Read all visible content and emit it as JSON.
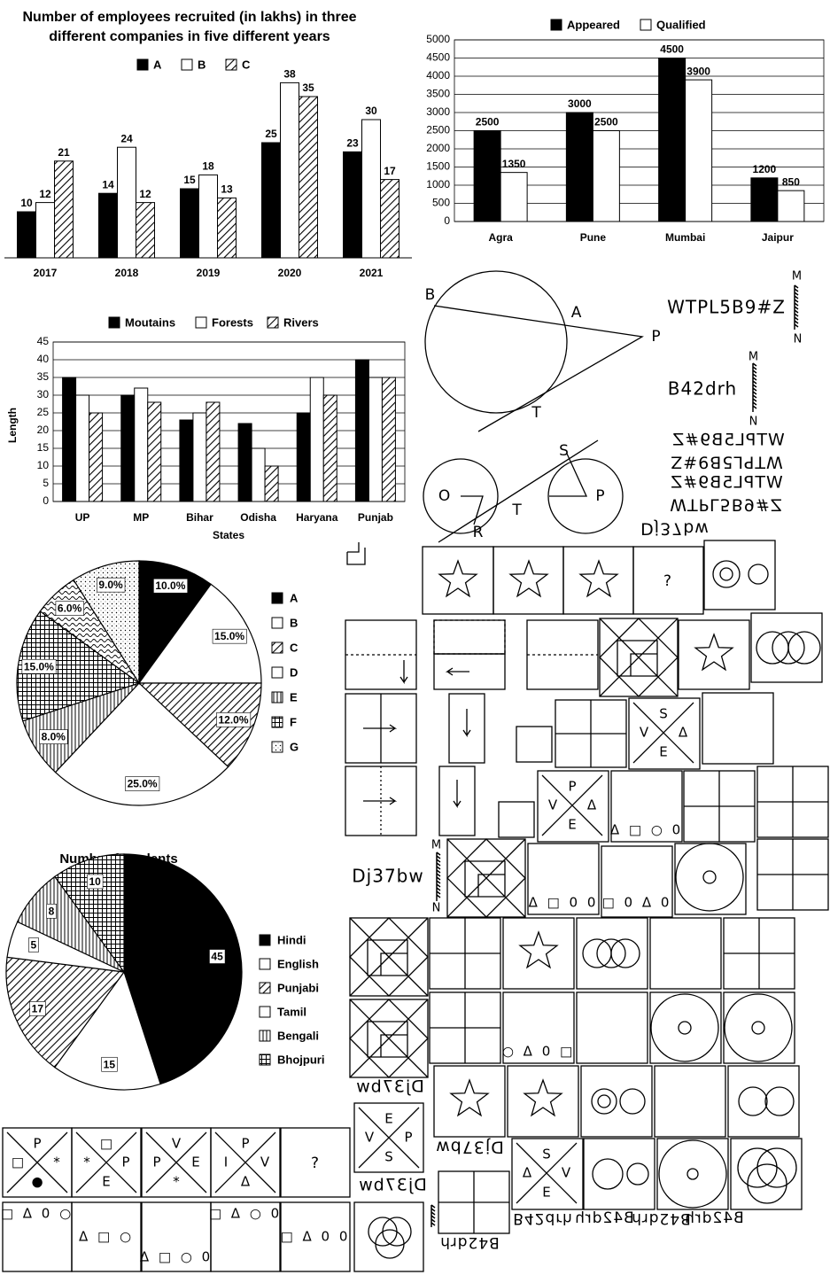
{
  "chart_data": [
    {
      "type": "bar",
      "title": "Number of employees recruited (in lakhs) in three different companies in five different years",
      "categories": [
        "2017",
        "2018",
        "2019",
        "2020",
        "2021"
      ],
      "series": [
        {
          "name": "A",
          "color": "#000000",
          "values": [
            10,
            14,
            15,
            25,
            23
          ]
        },
        {
          "name": "B",
          "color": "#ffffff",
          "values": [
            12,
            24,
            18,
            38,
            30
          ]
        },
        {
          "name": "C",
          "color": "#ffffff",
          "pattern": "diagonal-hatch",
          "values": [
            21,
            12,
            13,
            35,
            17
          ]
        }
      ],
      "ylim": [
        0,
        40
      ],
      "data_labels": true
    },
    {
      "type": "bar",
      "categories": [
        "Agra",
        "Pune",
        "Mumbai",
        "Jaipur"
      ],
      "series": [
        {
          "name": "Appeared",
          "color": "#000000",
          "values": [
            2500,
            3000,
            4500,
            1200
          ]
        },
        {
          "name": "Qualified",
          "color": "#ffffff",
          "values": [
            1350,
            2500,
            3900,
            850
          ]
        }
      ],
      "ylim": [
        0,
        5000
      ],
      "yticks": [
        0,
        500,
        1000,
        1500,
        2000,
        2500,
        3000,
        3500,
        4000,
        4500,
        5000
      ],
      "grid": true,
      "data_labels": true
    },
    {
      "type": "bar",
      "categories": [
        "UP",
        "MP",
        "Bihar",
        "Odisha",
        "Haryana",
        "Punjab"
      ],
      "series": [
        {
          "name": "Moutains",
          "color": "#000000",
          "values": [
            35,
            30,
            23,
            22,
            25,
            40
          ]
        },
        {
          "name": "Forests",
          "color": "#ffffff",
          "values": [
            30,
            32,
            25,
            15,
            35,
            35
          ]
        },
        {
          "name": "Rivers",
          "color": "#ffffff",
          "pattern": "diagonal-hatch",
          "values": [
            25,
            28,
            28,
            10,
            30,
            35
          ]
        }
      ],
      "xlabel": "States",
      "ylabel": "Length",
      "ylim": [
        0,
        45
      ],
      "yticks": [
        0,
        5,
        10,
        15,
        20,
        25,
        30,
        35,
        40,
        45
      ],
      "grid": true,
      "data_labels": false
    },
    {
      "type": "pie",
      "categories": [
        "A",
        "B",
        "C",
        "D",
        "E",
        "F",
        null,
        "G"
      ],
      "values": [
        10,
        15,
        12,
        25,
        8,
        15,
        6,
        9
      ],
      "value_labels": [
        "10.0%",
        "15.0%",
        "12.0%",
        "25.0%",
        "8.0%",
        "15.0%",
        "6.0%",
        "9.0%"
      ],
      "colors": [
        "#000000",
        "#ffffff",
        "#ffffff",
        "#ffffff",
        "#ffffff",
        "#ffffff",
        "#ffffff",
        "#ffffff"
      ],
      "patterns": [
        null,
        null,
        "diagonal-hatch",
        null,
        "vertical-lines",
        "grid",
        "waves",
        "dots"
      ]
    },
    {
      "type": "pie",
      "title": "Numbr of students",
      "categories": [
        "Hindi",
        "English",
        "Punjabi",
        "Tamil",
        "Bengali",
        "Bhojpuri"
      ],
      "values": [
        45,
        15,
        17,
        5,
        8,
        10
      ],
      "colors": [
        "#000000",
        "#ffffff",
        "#ffffff",
        "#ffffff",
        "#ffffff",
        "#ffffff"
      ],
      "patterns": [
        null,
        null,
        "diagonal-hatch",
        null,
        "vertical-lines",
        "grid"
      ]
    }
  ],
  "figures": {
    "circle_diagram_1": [
      "B",
      "A",
      "P",
      "T"
    ],
    "circle_diagram_2": [
      "S",
      "O",
      "P",
      "T",
      "R"
    ],
    "mirror_question_1": {
      "word": "WTPL5B9#Z",
      "mirror_top": "M",
      "mirror_bottom": "N"
    },
    "mirror_question_2": {
      "word": "B42drh",
      "mirror_top": "M",
      "mirror_bottom": "N"
    },
    "mirror_question_3": {
      "word": "Dj37bw",
      "mirror_top": "M",
      "mirror_bottom": "N"
    },
    "options_1": [
      "WTPL5B9#Z",
      "WTPL5B9#Z",
      "WTPL5B9#Z",
      "WTPL5B9#Z",
      "Dj37bw"
    ],
    "options_2": [
      "Dj37bw",
      "Dj37bw",
      "Dj37bw"
    ],
    "options_3": [
      "B42drh",
      "B42drh",
      "B42drh",
      "B42drh",
      "B42drh"
    ],
    "question_marks": [
      "?",
      "?"
    ],
    "cross_boxes": [
      {
        "top": "P",
        "left": "□",
        "right": "*",
        "bottom": "●"
      },
      {
        "top": "□",
        "left": "*",
        "right": "P",
        "bottom": "E"
      },
      {
        "top": "V",
        "left": "P",
        "right": "E",
        "bottom": "*"
      },
      {
        "top": "P",
        "left": "I",
        "right": "V",
        "bottom": "Δ"
      },
      {
        "top": "S",
        "left": "V",
        "right": "Δ",
        "bottom": "E"
      },
      {
        "top": "P",
        "left": "V",
        "right": "Δ",
        "bottom": "E"
      },
      {
        "top": "E",
        "left": "V",
        "right": "P",
        "bottom": "S"
      },
      {
        "top": "S",
        "left": "Δ",
        "right": "V",
        "bottom": "E"
      }
    ],
    "shape_rows": [
      "□ Δ 0 ○",
      "Δ □ ○",
      "Δ □ ○ 0",
      "□ Δ ○ 0",
      "□ Δ 0 0",
      "Δ □ ○ 0",
      "Δ □ 0 0",
      "□ 0 Δ 0",
      "○ Δ 0 □"
    ]
  }
}
